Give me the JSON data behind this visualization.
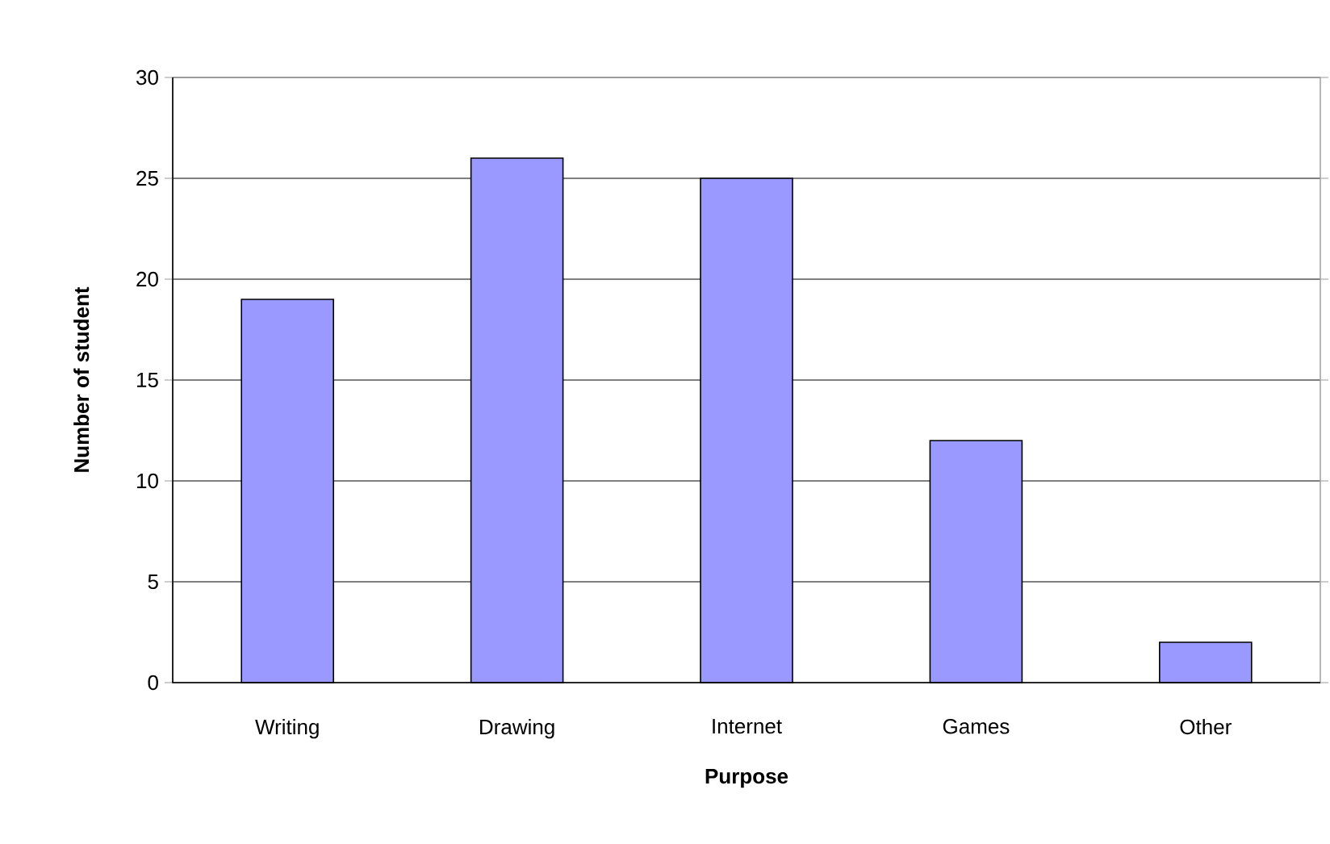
{
  "chart_data": {
    "type": "bar",
    "xlabel": "Purpose",
    "ylabel": "Number of student",
    "categories": [
      "Writing",
      "Drawing",
      "Internet",
      "Games",
      "Other"
    ],
    "values": [
      19,
      26,
      25,
      12,
      2
    ],
    "color": "#9999ff",
    "ylim": [
      0,
      30
    ],
    "yticks": [
      0,
      5,
      10,
      15,
      20,
      25,
      30
    ],
    "grid": "y"
  }
}
